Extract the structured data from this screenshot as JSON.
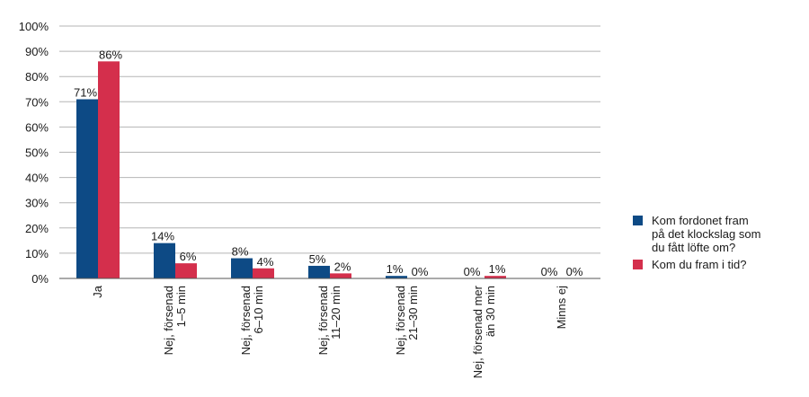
{
  "chart_data": {
    "type": "bar",
    "categories": [
      [
        "Ja"
      ],
      [
        "Nej, försenad",
        "1–5 min"
      ],
      [
        "Nej, försenad",
        "6–10 min"
      ],
      [
        "Nej, försenad",
        "11–20 min"
      ],
      [
        "Nej, försenad",
        "21–30 min"
      ],
      [
        "Nej, försenad mer",
        "än 30 min"
      ],
      [
        "Minns ej"
      ]
    ],
    "series": [
      {
        "name": "Kom fordonet fram på det klockslag som du fått löfte om?",
        "values": [
          71,
          14,
          8,
          5,
          1,
          0,
          0
        ],
        "color": "#0d4a85"
      },
      {
        "name": "Kom du fram i tid?",
        "values": [
          86,
          6,
          4,
          2,
          0,
          1,
          0
        ],
        "color": "#d42f4c"
      }
    ],
    "ylim": [
      0,
      100
    ],
    "yticks": [
      0,
      10,
      20,
      30,
      40,
      50,
      60,
      70,
      80,
      90,
      100
    ],
    "value_suffix": "%",
    "grid": true,
    "legend_position": "right"
  },
  "legend": {
    "items": [
      {
        "label_lines": [
          "Kom fordonet fram",
          "på det klockslag som",
          "du fått löfte om?"
        ],
        "color": "#0d4a85"
      },
      {
        "label_lines": [
          "Kom du fram i tid?"
        ],
        "color": "#d42f4c"
      }
    ]
  }
}
